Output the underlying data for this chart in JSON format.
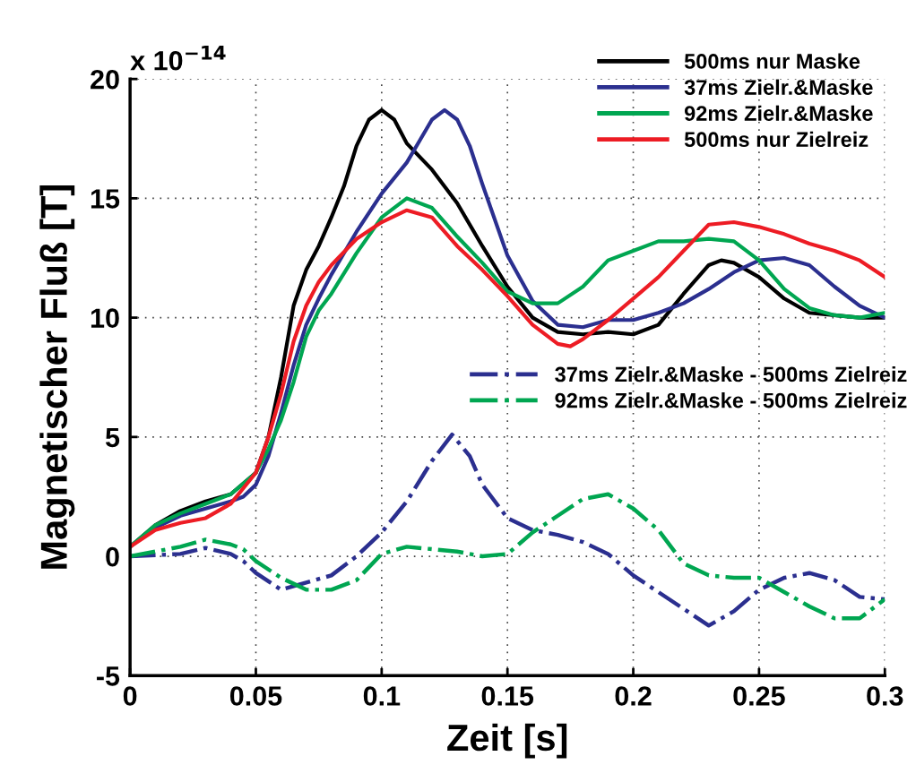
{
  "chart_data": {
    "type": "line",
    "xlabel": "Zeit [s]",
    "ylabel": "Magnetischer Fluß [T]",
    "annotations": [
      "x 10$^{−14}$"
    ],
    "xlim": [
      0,
      0.3
    ],
    "xticks": [
      0,
      0.05,
      0.1,
      0.15,
      0.2,
      0.25,
      0.3
    ],
    "ylim": [
      -5,
      20
    ],
    "yticks": [
      -5,
      0,
      5,
      10,
      15,
      20
    ],
    "grid": true,
    "legend": "top right",
    "marker": "none",
    "series": [
      {
        "name": "500ms nur Maske",
        "color": "#000000",
        "line_style": "solid",
        "x": [
          0,
          0.01,
          0.02,
          0.03,
          0.04,
          0.05,
          0.055,
          0.06,
          0.065,
          0.07,
          0.075,
          0.08,
          0.085,
          0.09,
          0.095,
          0.1,
          0.105,
          0.11,
          0.12,
          0.13,
          0.14,
          0.15,
          0.16,
          0.17,
          0.18,
          0.19,
          0.2,
          0.21,
          0.22,
          0.23,
          0.235,
          0.24,
          0.25,
          0.26,
          0.27,
          0.28,
          0.29,
          0.3
        ],
        "values": [
          0.4,
          1.3,
          1.9,
          2.3,
          2.6,
          3.5,
          5,
          7.5,
          10.5,
          12,
          13,
          14.2,
          15.5,
          17.2,
          18.3,
          18.7,
          18.3,
          17.3,
          16.2,
          14.8,
          13,
          11.3,
          10,
          9.4,
          9.3,
          9.4,
          9.3,
          9.7,
          11,
          12.2,
          12.4,
          12.3,
          11.7,
          10.8,
          10.2,
          10.1,
          10,
          10
        ]
      },
      {
        "name": "37ms Zielr.&Maske",
        "color": "#2b2f8f",
        "line_style": "solid",
        "x": [
          0,
          0.01,
          0.02,
          0.03,
          0.04,
          0.045,
          0.05,
          0.055,
          0.06,
          0.065,
          0.07,
          0.075,
          0.08,
          0.09,
          0.1,
          0.11,
          0.115,
          0.12,
          0.125,
          0.13,
          0.135,
          0.14,
          0.15,
          0.16,
          0.17,
          0.18,
          0.19,
          0.2,
          0.21,
          0.22,
          0.23,
          0.24,
          0.25,
          0.26,
          0.27,
          0.28,
          0.29,
          0.3
        ],
        "values": [
          0.4,
          1.2,
          1.7,
          2.0,
          2.3,
          2.5,
          3.0,
          4.2,
          6,
          8,
          9.7,
          10.8,
          11.8,
          13.6,
          15.2,
          16.5,
          17.4,
          18.3,
          18.7,
          18.3,
          17.2,
          15.6,
          12.6,
          10.7,
          9.7,
          9.6,
          9.9,
          9.9,
          10.2,
          10.6,
          11.2,
          11.9,
          12.4,
          12.5,
          12.2,
          11.3,
          10.5,
          10.0
        ]
      },
      {
        "name": "92ms Zielr.&Maske",
        "color": "#00a651",
        "line_style": "solid",
        "x": [
          0,
          0.01,
          0.02,
          0.03,
          0.04,
          0.05,
          0.055,
          0.06,
          0.065,
          0.07,
          0.075,
          0.08,
          0.09,
          0.1,
          0.11,
          0.12,
          0.13,
          0.14,
          0.15,
          0.16,
          0.17,
          0.18,
          0.19,
          0.2,
          0.21,
          0.22,
          0.23,
          0.24,
          0.25,
          0.26,
          0.27,
          0.28,
          0.29,
          0.3
        ],
        "values": [
          0.4,
          1.3,
          1.8,
          2.2,
          2.6,
          3.5,
          4.5,
          5.7,
          7.3,
          9.2,
          10.3,
          11,
          12.7,
          14.2,
          15.0,
          14.6,
          13.4,
          12.3,
          11.1,
          10.6,
          10.6,
          11.3,
          12.4,
          12.8,
          13.2,
          13.2,
          13.3,
          13.2,
          12.4,
          11.2,
          10.4,
          10.1,
          10.0,
          10.2
        ]
      },
      {
        "name": "500ms nur Zielreiz",
        "color": "#ed1c24",
        "line_style": "solid",
        "x": [
          0,
          0.01,
          0.02,
          0.03,
          0.04,
          0.05,
          0.055,
          0.06,
          0.065,
          0.07,
          0.075,
          0.08,
          0.09,
          0.1,
          0.11,
          0.12,
          0.13,
          0.14,
          0.15,
          0.16,
          0.17,
          0.175,
          0.18,
          0.19,
          0.2,
          0.21,
          0.22,
          0.23,
          0.24,
          0.25,
          0.26,
          0.27,
          0.28,
          0.29,
          0.3
        ],
        "values": [
          0.4,
          1.1,
          1.4,
          1.6,
          2.2,
          3.5,
          5,
          6.8,
          9,
          10.5,
          11.5,
          12.2,
          13.3,
          14.0,
          14.5,
          14.2,
          13.0,
          12.0,
          10.9,
          9.7,
          8.9,
          8.8,
          9.1,
          9.9,
          10.8,
          11.7,
          12.8,
          13.9,
          14.0,
          13.8,
          13.5,
          13.1,
          12.8,
          12.4,
          11.7
        ]
      },
      {
        "name": "37ms Zielr.&Maske - 500ms Zielreiz",
        "color": "#2b2f8f",
        "line_style": "dashdot",
        "x": [
          0,
          0.01,
          0.02,
          0.03,
          0.04,
          0.045,
          0.05,
          0.06,
          0.07,
          0.08,
          0.09,
          0.1,
          0.11,
          0.12,
          0.128,
          0.135,
          0.14,
          0.15,
          0.16,
          0.17,
          0.18,
          0.19,
          0.2,
          0.21,
          0.22,
          0.23,
          0.24,
          0.25,
          0.26,
          0.27,
          0.28,
          0.29,
          0.3
        ],
        "values": [
          0,
          0.05,
          0.1,
          0.35,
          0.1,
          -0.2,
          -0.7,
          -1.4,
          -1.1,
          -0.8,
          0.0,
          1.0,
          2.3,
          4.0,
          5.1,
          4.2,
          3.0,
          1.6,
          1.1,
          0.9,
          0.6,
          0.1,
          -0.8,
          -1.5,
          -2.2,
          -2.9,
          -2.3,
          -1.4,
          -0.9,
          -0.7,
          -1.0,
          -1.7,
          -1.8
        ]
      },
      {
        "name": "92ms Zielr.&Maske - 500ms Zielreiz",
        "color": "#00a651",
        "line_style": "dashdot",
        "x": [
          0,
          0.01,
          0.02,
          0.03,
          0.04,
          0.045,
          0.05,
          0.06,
          0.07,
          0.08,
          0.09,
          0.1,
          0.11,
          0.12,
          0.13,
          0.14,
          0.15,
          0.16,
          0.17,
          0.18,
          0.19,
          0.2,
          0.21,
          0.22,
          0.23,
          0.24,
          0.25,
          0.26,
          0.27,
          0.28,
          0.29,
          0.3
        ],
        "values": [
          0,
          0.2,
          0.4,
          0.7,
          0.5,
          0.3,
          -0.2,
          -0.9,
          -1.4,
          -1.4,
          -1.0,
          0.1,
          0.4,
          0.3,
          0.2,
          0.0,
          0.1,
          1.0,
          1.7,
          2.4,
          2.6,
          2.0,
          1.1,
          -0.3,
          -0.8,
          -0.9,
          -0.9,
          -1.5,
          -2.1,
          -2.6,
          -2.6,
          -1.8
        ]
      }
    ]
  }
}
